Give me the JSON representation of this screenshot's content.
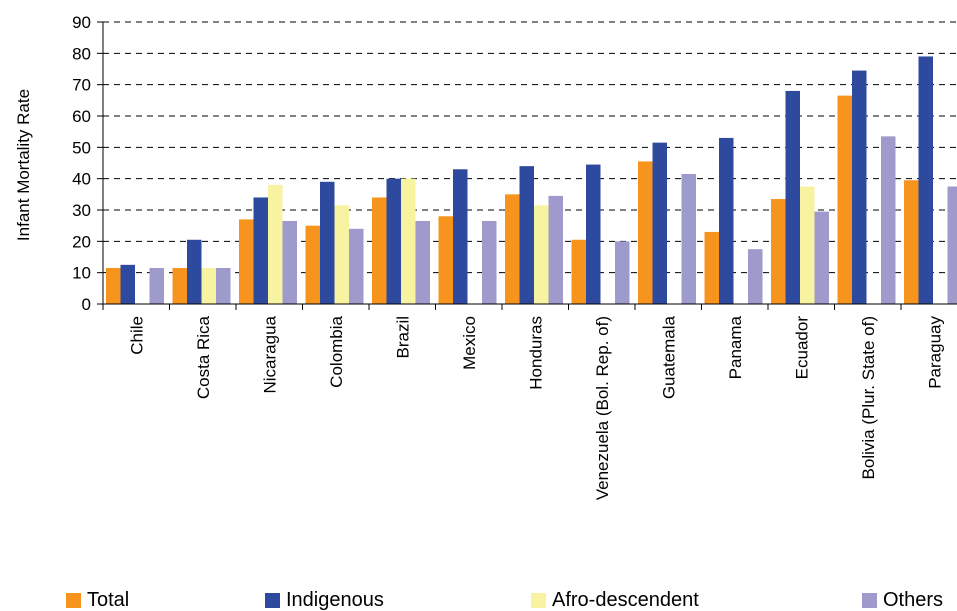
{
  "chart_data": {
    "type": "bar",
    "ylabel": "Infant Mortality Rate",
    "xlabel": "",
    "title": "",
    "ylim": [
      0,
      90
    ],
    "yticks": [
      0,
      10,
      20,
      30,
      40,
      50,
      60,
      70,
      80,
      90
    ],
    "grid": "horizontal dashed",
    "legend_position": "bottom",
    "categories": [
      "Chile",
      "Costa Rica",
      "Nicaragua",
      "Colombia",
      "Brazil",
      "Mexico",
      "Honduras",
      "Venezuela (Bol. Rep. of)",
      "Guatemala",
      "Panama",
      "Ecuador",
      "Bolivia (Plur. State of)",
      "Paraguay"
    ],
    "series": [
      {
        "name": "Total",
        "color": "#f7941d",
        "values": [
          11.5,
          11.5,
          27,
          25,
          34,
          28,
          35,
          20.5,
          45.5,
          23,
          33.5,
          66.5,
          39.5
        ]
      },
      {
        "name": "Indigenous",
        "color": "#2e4a9e",
        "values": [
          12.5,
          20.5,
          34,
          39,
          40,
          43,
          44,
          44.5,
          51.5,
          53,
          68,
          74.5,
          79
        ]
      },
      {
        "name": "Afro-descendent",
        "color": "#f7f3a1",
        "values": [
          null,
          11.5,
          38,
          31.5,
          40,
          null,
          31.5,
          null,
          null,
          null,
          37.5,
          null,
          null
        ]
      },
      {
        "name": "Others",
        "color": "#9e9acb",
        "values": [
          11.5,
          11.5,
          26.5,
          24,
          26.5,
          26.5,
          34.5,
          20,
          41.5,
          17.5,
          29.5,
          53.5,
          37.5
        ]
      }
    ]
  }
}
